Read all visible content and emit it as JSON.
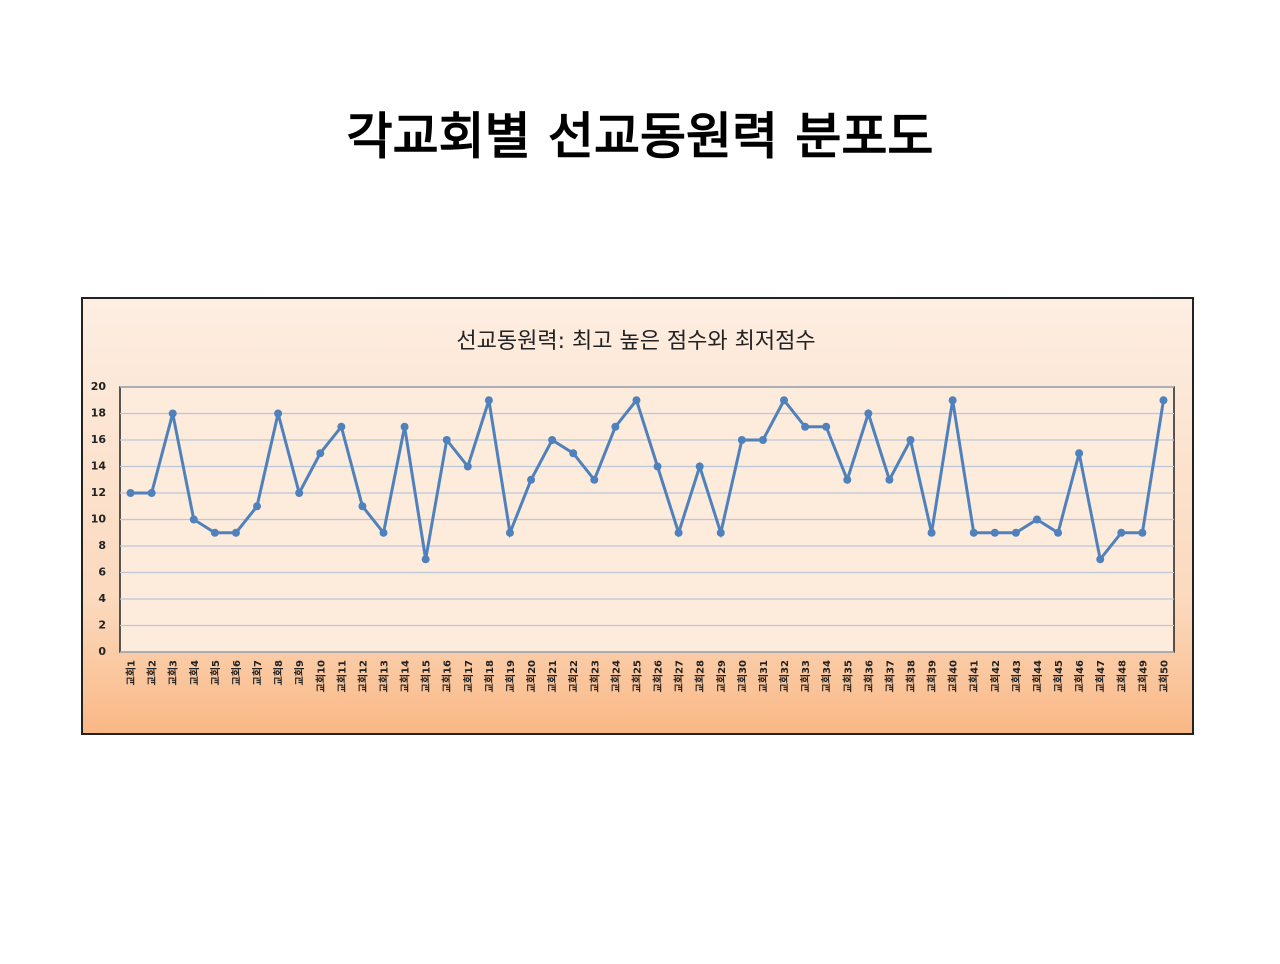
{
  "slide_title": "각교회별 선교동원력 분포도",
  "chart_data": {
    "type": "line",
    "title": "선교동원력: 최고 높은 점수와 최저점수",
    "categories": [
      "교회1",
      "교회2",
      "교회3",
      "교회4",
      "교회5",
      "교회6",
      "교회7",
      "교회8",
      "교회9",
      "교회10",
      "교회11",
      "교회12",
      "교회13",
      "교회14",
      "교회15",
      "교회16",
      "교회17",
      "교회18",
      "교회19",
      "교회20",
      "교회21",
      "교회22",
      "교회23",
      "교회24",
      "교회25",
      "교회26",
      "교회27",
      "교회28",
      "교회29",
      "교회30",
      "교회31",
      "교회32",
      "교회33",
      "교회34",
      "교회35",
      "교회36",
      "교회37",
      "교회38",
      "교회39",
      "교회40",
      "교회41",
      "교회42",
      "교회43",
      "교회44",
      "교회45",
      "교회46",
      "교회47",
      "교회48",
      "교회49",
      "교회50"
    ],
    "values": [
      12,
      12,
      18,
      10,
      9,
      9,
      11,
      18,
      12,
      15,
      17,
      11,
      9,
      17,
      7,
      16,
      14,
      19,
      9,
      13,
      16,
      15,
      13,
      17,
      19,
      14,
      9,
      14,
      9,
      16,
      16,
      19,
      17,
      17,
      13,
      18,
      13,
      16,
      9,
      19,
      9,
      9,
      9,
      10,
      9,
      15,
      7,
      9,
      9,
      19
    ],
    "color": "#4f81bd",
    "ylim": [
      0,
      20
    ],
    "yticks": [
      0,
      2,
      4,
      6,
      8,
      10,
      12,
      14,
      16,
      18,
      20
    ],
    "grid": true
  }
}
